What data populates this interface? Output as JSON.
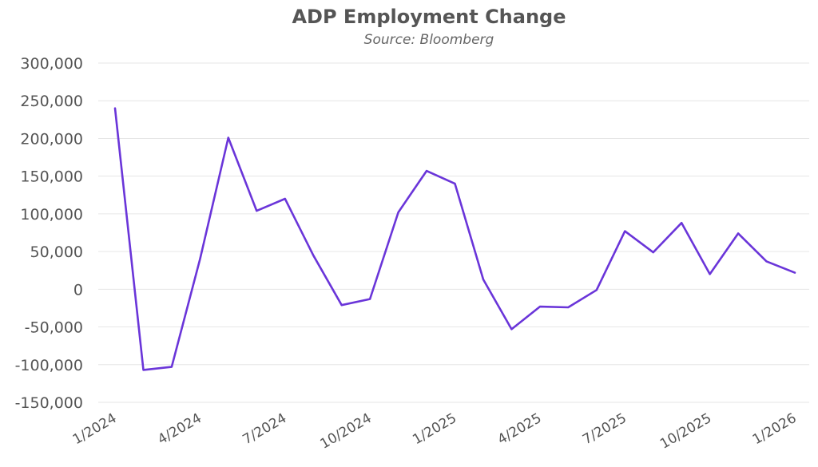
{
  "chart_data": {
    "type": "line",
    "title": "ADP Employment Change",
    "subtitle": "Source: Bloomberg",
    "xlabel": "",
    "ylabel": "",
    "ylim": [
      -150000,
      300000
    ],
    "yticks": [
      300000,
      250000,
      200000,
      150000,
      100000,
      50000,
      0,
      -50000,
      -100000,
      -150000
    ],
    "ytick_labels": [
      "300,000",
      "250,000",
      "200,000",
      "150,000",
      "100,000",
      "50,000",
      "0",
      "-50,000",
      "-100,000",
      "-150,000"
    ],
    "x": [
      "1/2024",
      "2/2024",
      "3/2024",
      "4/2024",
      "5/2024",
      "6/2024",
      "7/2024",
      "8/2024",
      "9/2024",
      "10/2024",
      "11/2024",
      "12/2024",
      "1/2025",
      "2/2025",
      "3/2025",
      "4/2025",
      "5/2025",
      "6/2025",
      "7/2025",
      "8/2025",
      "9/2025",
      "10/2025",
      "11/2025",
      "12/2025",
      "1/2026"
    ],
    "xtick_labels": [
      "1/2024",
      "4/2024",
      "7/2024",
      "10/2024",
      "1/2025",
      "4/2025",
      "7/2025",
      "10/2025",
      "1/2026"
    ],
    "grid": true,
    "series": [
      {
        "color": "#6a35d9",
        "values": [
          240000,
          -107000,
          -103000,
          40000,
          201000,
          104000,
          120000,
          45000,
          -21000,
          -13000,
          102000,
          157000,
          140000,
          13000,
          -53000,
          -23000,
          -24000,
          -1000,
          77000,
          49000,
          88000,
          20000,
          74000,
          37000,
          22000
        ]
      }
    ]
  }
}
